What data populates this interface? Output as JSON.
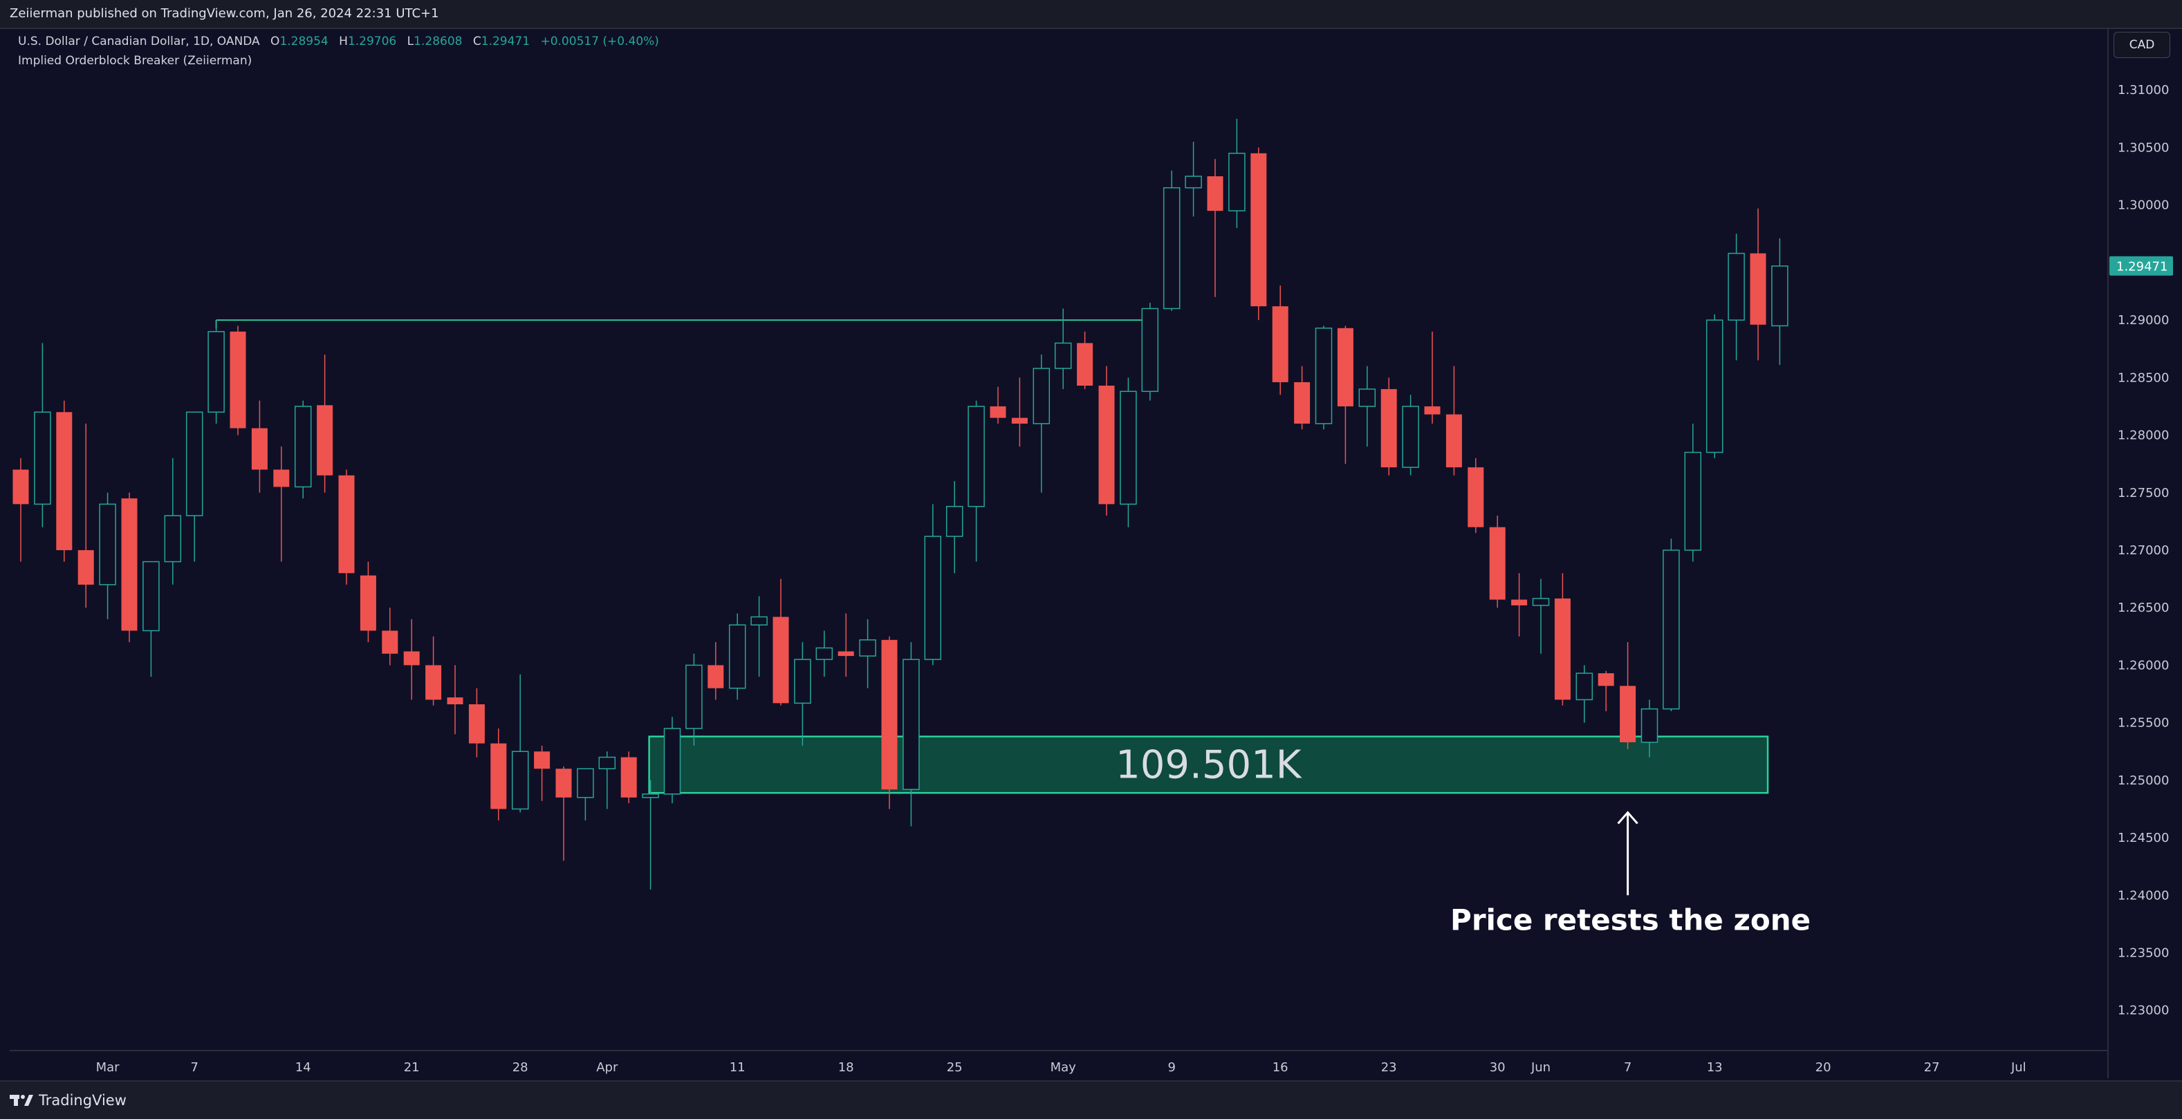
{
  "header": {
    "text": "Zeiierman published on TradingView.com, Jan 26, 2024 22:31 UTC+1"
  },
  "legend": {
    "symbol": "U.S. Dollar / Canadian Dollar, 1D, OANDA",
    "o_label": "O",
    "o": "1.28954",
    "h_label": "H",
    "h": "1.29706",
    "l_label": "L",
    "l": "1.28608",
    "c_label": "C",
    "c": "1.29471",
    "change": "+0.00517 (+0.40%)",
    "indicator": "Implied Orderblock Breaker (Zeiierman)"
  },
  "currency_button": "CAD",
  "footer": {
    "brand": "TradingView",
    "logo_icon": "tradingview-logo-icon"
  },
  "colors": {
    "bg": "#0f1026",
    "up": "#26a69a",
    "down": "#ef5350",
    "zone_fill": "#0e4a3e",
    "zone_border": "#2ad29a",
    "line": "#2ec295",
    "price_badge": "#26a69a",
    "axis_text": "#c9ccd6"
  },
  "chart_data": {
    "type": "candlestick",
    "symbol": "USD/CAD",
    "timeframe": "1D",
    "ylim": [
      1.2265,
      1.3153
    ],
    "y_ticks": [
      1.23,
      1.235,
      1.24,
      1.245,
      1.25,
      1.255,
      1.26,
      1.265,
      1.27,
      1.275,
      1.28,
      1.285,
      1.29,
      1.295,
      1.3,
      1.305,
      1.31
    ],
    "y_tick_labels": [
      "1.23000",
      "1.23500",
      "1.24000",
      "1.24500",
      "1.25000",
      "1.25500",
      "1.26000",
      "1.26500",
      "1.27000",
      "1.27500",
      "1.28000",
      "1.28500",
      "1.29000",
      "1.29500",
      "1.30000",
      "1.30500",
      "1.31000"
    ],
    "x_labels": [
      {
        "index": 4,
        "label": "Mar"
      },
      {
        "index": 8,
        "label": "7"
      },
      {
        "index": 13,
        "label": "14"
      },
      {
        "index": 18,
        "label": "21"
      },
      {
        "index": 23,
        "label": "28"
      },
      {
        "index": 27,
        "label": "Apr"
      },
      {
        "index": 33,
        "label": "11"
      },
      {
        "index": 38,
        "label": "18"
      },
      {
        "index": 43,
        "label": "25"
      },
      {
        "index": 48,
        "label": "May"
      },
      {
        "index": 53,
        "label": "9"
      },
      {
        "index": 58,
        "label": "16"
      },
      {
        "index": 63,
        "label": "23"
      },
      {
        "index": 68,
        "label": "30"
      },
      {
        "index": 70,
        "label": "Jun"
      },
      {
        "index": 74,
        "label": "7"
      },
      {
        "index": 78,
        "label": "13"
      },
      {
        "index": 83,
        "label": "20"
      },
      {
        "index": 88,
        "label": "27"
      },
      {
        "index": 92,
        "label": "Jul"
      }
    ],
    "candles": [
      {
        "o": 1.277,
        "h": 1.278,
        "l": 1.269,
        "c": 1.274
      },
      {
        "o": 1.274,
        "h": 1.288,
        "l": 1.272,
        "c": 1.282
      },
      {
        "o": 1.282,
        "h": 1.283,
        "l": 1.269,
        "c": 1.27
      },
      {
        "o": 1.27,
        "h": 1.281,
        "l": 1.265,
        "c": 1.267
      },
      {
        "o": 1.267,
        "h": 1.275,
        "l": 1.264,
        "c": 1.274
      },
      {
        "o": 1.2745,
        "h": 1.275,
        "l": 1.262,
        "c": 1.263
      },
      {
        "o": 1.263,
        "h": 1.269,
        "l": 1.259,
        "c": 1.269
      },
      {
        "o": 1.269,
        "h": 1.278,
        "l": 1.267,
        "c": 1.273
      },
      {
        "o": 1.273,
        "h": 1.282,
        "l": 1.269,
        "c": 1.282
      },
      {
        "o": 1.282,
        "h": 1.29,
        "l": 1.281,
        "c": 1.289
      },
      {
        "o": 1.289,
        "h": 1.2895,
        "l": 1.28,
        "c": 1.2806
      },
      {
        "o": 1.2806,
        "h": 1.283,
        "l": 1.275,
        "c": 1.277
      },
      {
        "o": 1.277,
        "h": 1.279,
        "l": 1.269,
        "c": 1.2755
      },
      {
        "o": 1.2755,
        "h": 1.283,
        "l": 1.2745,
        "c": 1.2825
      },
      {
        "o": 1.2826,
        "h": 1.287,
        "l": 1.275,
        "c": 1.2765
      },
      {
        "o": 1.2765,
        "h": 1.277,
        "l": 1.267,
        "c": 1.268
      },
      {
        "o": 1.2678,
        "h": 1.269,
        "l": 1.262,
        "c": 1.263
      },
      {
        "o": 1.263,
        "h": 1.265,
        "l": 1.26,
        "c": 1.261
      },
      {
        "o": 1.2612,
        "h": 1.264,
        "l": 1.257,
        "c": 1.26
      },
      {
        "o": 1.26,
        "h": 1.2625,
        "l": 1.2565,
        "c": 1.257
      },
      {
        "o": 1.2572,
        "h": 1.26,
        "l": 1.254,
        "c": 1.2566
      },
      {
        "o": 1.2566,
        "h": 1.258,
        "l": 1.252,
        "c": 1.2532
      },
      {
        "o": 1.2532,
        "h": 1.2545,
        "l": 1.2465,
        "c": 1.2475
      },
      {
        "o": 1.2475,
        "h": 1.2592,
        "l": 1.2472,
        "c": 1.2525
      },
      {
        "o": 1.2525,
        "h": 1.253,
        "l": 1.2482,
        "c": 1.251
      },
      {
        "o": 1.251,
        "h": 1.2512,
        "l": 1.243,
        "c": 1.2485
      },
      {
        "o": 1.2485,
        "h": 1.251,
        "l": 1.2465,
        "c": 1.251
      },
      {
        "o": 1.251,
        "h": 1.2525,
        "l": 1.2475,
        "c": 1.252
      },
      {
        "o": 1.252,
        "h": 1.2525,
        "l": 1.248,
        "c": 1.2485
      },
      {
        "o": 1.2485,
        "h": 1.25,
        "l": 1.2405,
        "c": 1.2488
      },
      {
        "o": 1.2488,
        "h": 1.2555,
        "l": 1.248,
        "c": 1.2545
      },
      {
        "o": 1.2545,
        "h": 1.261,
        "l": 1.253,
        "c": 1.26
      },
      {
        "o": 1.26,
        "h": 1.262,
        "l": 1.257,
        "c": 1.258
      },
      {
        "o": 1.258,
        "h": 1.2645,
        "l": 1.257,
        "c": 1.2635
      },
      {
        "o": 1.2635,
        "h": 1.266,
        "l": 1.259,
        "c": 1.2642
      },
      {
        "o": 1.2642,
        "h": 1.2675,
        "l": 1.2565,
        "c": 1.2567
      },
      {
        "o": 1.2567,
        "h": 1.262,
        "l": 1.253,
        "c": 1.2605
      },
      {
        "o": 1.2605,
        "h": 1.263,
        "l": 1.259,
        "c": 1.2615
      },
      {
        "o": 1.2612,
        "h": 1.2645,
        "l": 1.259,
        "c": 1.2608
      },
      {
        "o": 1.2608,
        "h": 1.264,
        "l": 1.258,
        "c": 1.2622
      },
      {
        "o": 1.2622,
        "h": 1.2625,
        "l": 1.2475,
        "c": 1.2492
      },
      {
        "o": 1.2492,
        "h": 1.262,
        "l": 1.246,
        "c": 1.2605
      },
      {
        "o": 1.2605,
        "h": 1.274,
        "l": 1.26,
        "c": 1.2712
      },
      {
        "o": 1.2712,
        "h": 1.276,
        "l": 1.268,
        "c": 1.2738
      },
      {
        "o": 1.2738,
        "h": 1.283,
        "l": 1.269,
        "c": 1.2825
      },
      {
        "o": 1.2825,
        "h": 1.2842,
        "l": 1.281,
        "c": 1.2815
      },
      {
        "o": 1.2815,
        "h": 1.285,
        "l": 1.279,
        "c": 1.281
      },
      {
        "o": 1.281,
        "h": 1.287,
        "l": 1.275,
        "c": 1.2858
      },
      {
        "o": 1.2858,
        "h": 1.291,
        "l": 1.284,
        "c": 1.288
      },
      {
        "o": 1.288,
        "h": 1.289,
        "l": 1.284,
        "c": 1.2843
      },
      {
        "o": 1.2843,
        "h": 1.286,
        "l": 1.273,
        "c": 1.274
      },
      {
        "o": 1.274,
        "h": 1.285,
        "l": 1.272,
        "c": 1.2838
      },
      {
        "o": 1.2838,
        "h": 1.2915,
        "l": 1.283,
        "c": 1.291
      },
      {
        "o": 1.291,
        "h": 1.303,
        "l": 1.2908,
        "c": 1.3015
      },
      {
        "o": 1.3015,
        "h": 1.3055,
        "l": 1.299,
        "c": 1.3025
      },
      {
        "o": 1.3025,
        "h": 1.304,
        "l": 1.292,
        "c": 1.2995
      },
      {
        "o": 1.2995,
        "h": 1.3075,
        "l": 1.298,
        "c": 1.3045
      },
      {
        "o": 1.3045,
        "h": 1.305,
        "l": 1.29,
        "c": 1.2912
      },
      {
        "o": 1.2912,
        "h": 1.293,
        "l": 1.2835,
        "c": 1.2846
      },
      {
        "o": 1.2846,
        "h": 1.286,
        "l": 1.2805,
        "c": 1.281
      },
      {
        "o": 1.281,
        "h": 1.2895,
        "l": 1.2805,
        "c": 1.2893
      },
      {
        "o": 1.2893,
        "h": 1.2895,
        "l": 1.2775,
        "c": 1.2825
      },
      {
        "o": 1.2825,
        "h": 1.286,
        "l": 1.279,
        "c": 1.284
      },
      {
        "o": 1.284,
        "h": 1.285,
        "l": 1.2765,
        "c": 1.2772
      },
      {
        "o": 1.2772,
        "h": 1.2835,
        "l": 1.2765,
        "c": 1.2825
      },
      {
        "o": 1.2825,
        "h": 1.289,
        "l": 1.281,
        "c": 1.2818
      },
      {
        "o": 1.2818,
        "h": 1.286,
        "l": 1.2765,
        "c": 1.2772
      },
      {
        "o": 1.2772,
        "h": 1.278,
        "l": 1.2715,
        "c": 1.272
      },
      {
        "o": 1.272,
        "h": 1.273,
        "l": 1.265,
        "c": 1.2657
      },
      {
        "o": 1.2657,
        "h": 1.268,
        "l": 1.2625,
        "c": 1.2652
      },
      {
        "o": 1.2652,
        "h": 1.2675,
        "l": 1.261,
        "c": 1.2658
      },
      {
        "o": 1.2658,
        "h": 1.268,
        "l": 1.2565,
        "c": 1.257
      },
      {
        "o": 1.257,
        "h": 1.26,
        "l": 1.255,
        "c": 1.2593
      },
      {
        "o": 1.2593,
        "h": 1.2595,
        "l": 1.256,
        "c": 1.2582
      },
      {
        "o": 1.2582,
        "h": 1.262,
        "l": 1.2527,
        "c": 1.2533
      },
      {
        "o": 1.2533,
        "h": 1.257,
        "l": 1.252,
        "c": 1.2562
      },
      {
        "o": 1.2562,
        "h": 1.271,
        "l": 1.256,
        "c": 1.27
      },
      {
        "o": 1.27,
        "h": 1.281,
        "l": 1.269,
        "c": 1.2785
      },
      {
        "o": 1.2785,
        "h": 1.2905,
        "l": 1.278,
        "c": 1.29
      },
      {
        "o": 1.29,
        "h": 1.2975,
        "l": 1.2865,
        "c": 1.2958
      },
      {
        "o": 1.2958,
        "h": 1.2997,
        "l": 1.2865,
        "c": 1.2896
      },
      {
        "o": 1.2895,
        "h": 1.2971,
        "l": 1.2861,
        "c": 1.2947
      }
    ],
    "order_block": {
      "top": 1.2538,
      "bottom": 1.2489,
      "start_index": 29,
      "end_index": 80,
      "label": "109.501K"
    },
    "level_line": {
      "price": 1.29,
      "start_index": 9,
      "end_index": 52
    },
    "annotation": {
      "text": "Price retests the zone",
      "index": 74,
      "arrow_from": 1.24,
      "arrow_to": 1.2472
    },
    "last_price_label": "1.29471",
    "last_price": 1.29471
  }
}
